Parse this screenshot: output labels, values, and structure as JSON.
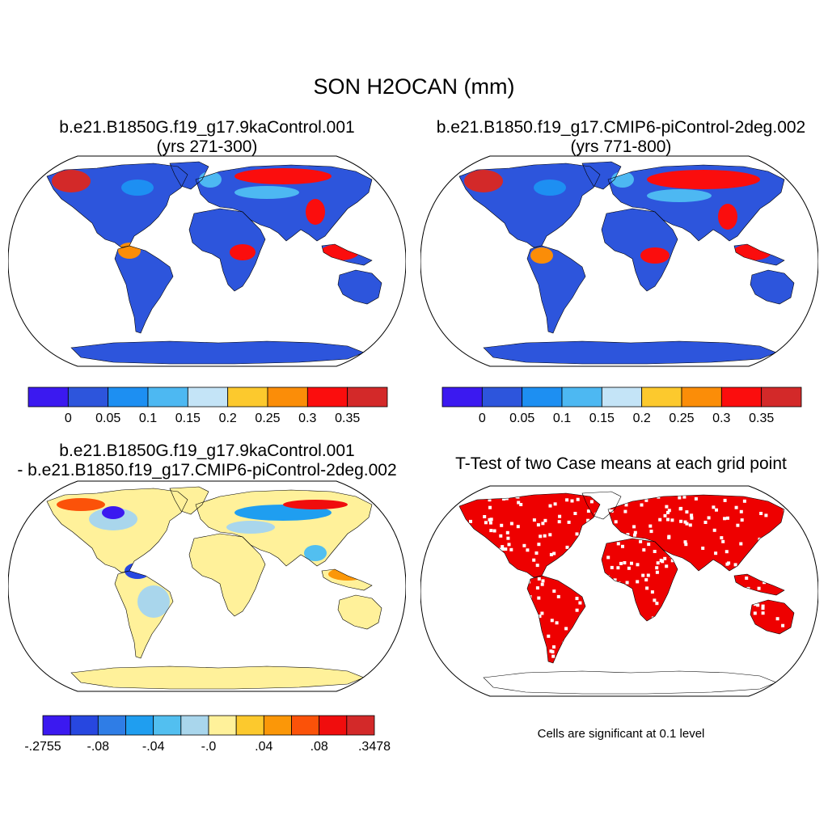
{
  "title": "SON H2OCAN (mm)",
  "panels": [
    {
      "id": "case1",
      "title_lines": [
        "b.e21.B1850G.f19_g17.9kaControl.001",
        "(yrs 271-300)"
      ],
      "colorbar_colors": [
        "#3b19f0",
        "#2d55dc",
        "#1d8ff2",
        "#4db8f2",
        "#c4e4f7",
        "#fcc92d",
        "#fb8d08",
        "#fb0d0d",
        "#d32929"
      ],
      "colorbar_labels": [
        "0",
        "0.05",
        "0.1",
        "0.15",
        "0.2",
        "0.25",
        "0.3",
        "0.35"
      ]
    },
    {
      "id": "case2",
      "title_lines": [
        "b.e21.B1850.f19_g17.CMIP6-piControl-2deg.002",
        "(yrs 771-800)"
      ],
      "colorbar_colors": [
        "#3b19f0",
        "#2d55dc",
        "#1d8ff2",
        "#4db8f2",
        "#c4e4f7",
        "#fcc92d",
        "#fb8d08",
        "#fb0d0d",
        "#d32929"
      ],
      "colorbar_labels": [
        "0",
        "0.05",
        "0.1",
        "0.15",
        "0.2",
        "0.25",
        "0.3",
        "0.35"
      ]
    },
    {
      "id": "diff",
      "title_lines": [
        "b.e21.B1850G.f19_g17.9kaControl.001",
        "- b.e21.B1850.f19_g17.CMIP6-piControl-2deg.002"
      ],
      "colorbar_colors": [
        "#3b19f0",
        "#2747e0",
        "#2f7de6",
        "#1f9ef0",
        "#52bff0",
        "#a9d6ec",
        "#fff19a",
        "#fcc92d",
        "#fb9708",
        "#fb5209",
        "#f00d0d",
        "#d32929"
      ],
      "colorbar_labels": [
        "-.2755",
        "-.08",
        "-.04",
        "-.0",
        ".04",
        ".08",
        ".3478"
      ]
    },
    {
      "id": "ttest",
      "title_lines": [
        "T-Test of two Case means at each grid point"
      ],
      "note": "Cells are significant at 0.1 level",
      "significance_color": "#ee0000"
    }
  ]
}
